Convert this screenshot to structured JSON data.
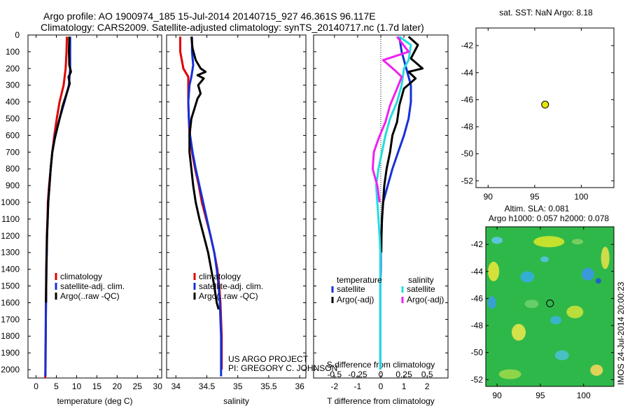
{
  "header": {
    "line1": "Argo profile: AO 1900974_185 15-Jul-2014 20140715_927 46.361S 96.117E",
    "line2": "Climatology: CARS2009. Satellite-adjusted climatology: synTS_20140717.nc (1.7d later)"
  },
  "footer": {
    "project": "US ARGO PROJECT",
    "pi": "PI: GREGORY C. JOHNSON",
    "stamp": "IMOS 24-Jul-2014 20:00:23"
  },
  "colors": {
    "climatology": "#e00000",
    "satellite": "#1430d8",
    "argo": "#000000",
    "sal_sat": "#22dde0",
    "sal_argo": "#f020f0",
    "marker": "#e6e600"
  },
  "chart_data": [
    {
      "type": "line",
      "xlabel": "temperature (deg C)",
      "ylabel": "",
      "xlim": [
        -2,
        31
      ],
      "ylim": [
        0,
        2050
      ],
      "y_reversed": true,
      "xticks": [
        0,
        5,
        10,
        15,
        20,
        25,
        30
      ],
      "yticks": [
        0,
        100,
        200,
        300,
        400,
        500,
        600,
        700,
        800,
        900,
        1000,
        1100,
        1200,
        1300,
        1400,
        1500,
        1600,
        1700,
        1800,
        1900,
        2000
      ],
      "legend": [
        "climatology",
        "satellite-adj. clim.",
        "Argo(..raw -QC)"
      ],
      "series": [
        {
          "name": "climatology",
          "color": "#e00000",
          "x": [
            7.6,
            7.5,
            7.3,
            6.8,
            5.8,
            5.1,
            4.5,
            4.0,
            3.6,
            3.2,
            2.9,
            2.8,
            2.65,
            2.6,
            2.5,
            2.45,
            2.4,
            2.38,
            2.35,
            2.3,
            2.28,
            2.25
          ],
          "y": [
            10,
            100,
            200,
            300,
            400,
            500,
            600,
            700,
            800,
            900,
            1000,
            1100,
            1200,
            1300,
            1400,
            1500,
            1600,
            1700,
            1800,
            1900,
            2000,
            2050
          ]
        },
        {
          "name": "satellite-adj. clim.",
          "color": "#1430d8",
          "x": [
            8.4,
            8.4,
            8.4,
            8.1,
            7.0,
            5.8,
            4.7,
            4.0,
            3.6,
            3.3,
            3.0,
            2.85,
            2.7,
            2.65,
            2.55,
            2.5,
            2.45,
            2.4,
            2.38,
            2.35,
            2.3
          ],
          "y": [
            10,
            100,
            200,
            300,
            400,
            500,
            600,
            700,
            800,
            900,
            1000,
            1100,
            1200,
            1300,
            1400,
            1500,
            1600,
            1700,
            1800,
            1900,
            2040
          ]
        },
        {
          "name": "Argo(..raw -QC)",
          "color": "#000000",
          "x": [
            8.2,
            8.1,
            8.2,
            8.6,
            8.0,
            8.3,
            7.8,
            6.6,
            5.6,
            4.6,
            4.0,
            3.6,
            3.3,
            3.0,
            2.85,
            2.7,
            2.6,
            2.55,
            2.5,
            2.45
          ],
          "y": [
            10,
            100,
            180,
            220,
            250,
            290,
            330,
            420,
            520,
            620,
            700,
            800,
            900,
            1000,
            1100,
            1200,
            1300,
            1400,
            1500,
            1600
          ]
        }
      ]
    },
    {
      "type": "line",
      "xlabel": "salinity",
      "ylabel": "",
      "xlim": [
        33.85,
        36.1
      ],
      "ylim": [
        0,
        2050
      ],
      "y_reversed": true,
      "xticks": [
        34,
        34.5,
        35,
        35.5,
        36
      ],
      "legend": [
        "climatology",
        "satellite-adj. clim.",
        "Argo(..raw -QC)"
      ],
      "series": [
        {
          "name": "climatology",
          "color": "#e00000",
          "x": [
            34.07,
            34.07,
            34.12,
            34.2,
            34.2,
            34.2,
            34.21,
            34.22,
            34.26,
            34.31,
            34.37,
            34.42,
            34.49,
            34.56,
            34.62,
            34.67,
            34.7,
            34.72,
            34.73,
            34.74,
            34.74
          ],
          "y": [
            10,
            100,
            200,
            250,
            300,
            400,
            500,
            600,
            700,
            800,
            900,
            1000,
            1100,
            1200,
            1300,
            1400,
            1500,
            1600,
            1700,
            1800,
            2000
          ]
        },
        {
          "name": "satellite-adj. clim.",
          "color": "#1430d8",
          "x": [
            34.26,
            34.26,
            34.28,
            34.25,
            34.22,
            34.2,
            34.21,
            34.23,
            34.27,
            34.32,
            34.38,
            34.44,
            34.5,
            34.56,
            34.62,
            34.66,
            34.69,
            34.71,
            34.72,
            34.73,
            34.73
          ],
          "y": [
            10,
            100,
            180,
            250,
            300,
            400,
            500,
            600,
            700,
            800,
            900,
            1000,
            1100,
            1200,
            1300,
            1400,
            1500,
            1600,
            1700,
            1800,
            2040
          ]
        },
        {
          "name": "Argo(..raw -QC)",
          "color": "#000000",
          "x": [
            34.25,
            34.27,
            34.32,
            34.4,
            34.48,
            34.35,
            34.45,
            34.36,
            34.4,
            34.35,
            34.25,
            34.22,
            34.22,
            34.25,
            34.28,
            34.32,
            34.38,
            34.45,
            34.52,
            34.57,
            34.62,
            34.66,
            34.69
          ],
          "y": [
            10,
            80,
            150,
            200,
            220,
            240,
            260,
            300,
            350,
            380,
            500,
            600,
            700,
            800,
            900,
            1000,
            1100,
            1200,
            1300,
            1400,
            1500,
            1600,
            1640
          ]
        }
      ]
    },
    {
      "type": "line",
      "xlabel": "T difference from climatology",
      "top_label": "S difference from climatology",
      "xlim": [
        -2.9,
        2.9
      ],
      "ylim": [
        0,
        2050
      ],
      "y_reversed": true,
      "xticks": [
        -2,
        -1,
        0,
        1,
        2
      ],
      "secondary_xticks": [
        "-0.5",
        "-0.25",
        "0",
        "0.25",
        "0.5"
      ],
      "legend_groups": {
        "temperature": [
          "satellite",
          "Argo(-adj)"
        ],
        "salinity": [
          "satellite",
          "Argo(-adj)"
        ]
      },
      "series": [
        {
          "name": "temperature satellite",
          "color": "#1430d8",
          "x": [
            0.8,
            0.9,
            1.1,
            1.3,
            1.3,
            1.2,
            1.0,
            0.75,
            0.5,
            0.3,
            0.1,
            0.05,
            0.02,
            0.0,
            0.0,
            -0.02,
            -0.02,
            -0.02,
            -0.02,
            -0.02
          ],
          "y": [
            10,
            100,
            200,
            300,
            400,
            500,
            600,
            700,
            800,
            900,
            1000,
            1100,
            1200,
            1300,
            1400,
            1500,
            1600,
            1700,
            1800,
            2000
          ]
        },
        {
          "name": "temperature Argo(-adj)",
          "color": "#000000",
          "x": [
            1.2,
            1.6,
            1.3,
            1.8,
            1.2,
            1.5,
            1.0,
            0.8,
            0.7,
            0.5,
            0.4,
            0.25,
            0.15,
            0.1,
            0.05,
            0.03,
            0.02
          ],
          "y": [
            10,
            60,
            140,
            200,
            220,
            260,
            320,
            420,
            520,
            600,
            700,
            800,
            900,
            1000,
            1100,
            1200,
            1300
          ]
        },
        {
          "name": "salinity satellite",
          "color": "#22dde0",
          "x": [
            0.8,
            1.3,
            1.2,
            1.0,
            0.9,
            0.7,
            0.4,
            0.2,
            0.05,
            -0.1,
            -0.2,
            -0.15,
            -0.1,
            -0.05,
            -0.02,
            -0.02,
            -0.02,
            -0.02,
            -0.02,
            -0.02,
            -0.02
          ],
          "y": [
            10,
            60,
            150,
            200,
            300,
            400,
            500,
            600,
            700,
            800,
            900,
            1000,
            1100,
            1200,
            1300,
            1400,
            1500,
            1600,
            1700,
            1800,
            2000
          ]
        },
        {
          "name": "salinity Argo(-adj)",
          "color": "#f020f0",
          "x": [
            0.7,
            1.2,
            0.1,
            0.6,
            0.9,
            0.7,
            0.4,
            0.2,
            -0.1,
            -0.3,
            -0.35,
            -0.15,
            -0.05
          ],
          "y": [
            10,
            100,
            150,
            210,
            250,
            320,
            420,
            520,
            620,
            700,
            800,
            900,
            1000
          ]
        }
      ]
    },
    {
      "type": "scatter",
      "title": "sat. SST: NaN Argo: 8.18",
      "xlim": [
        88.7,
        103.5
      ],
      "ylim": [
        -52.5,
        -40.7
      ],
      "xticks": [
        90,
        95,
        100
      ],
      "yticks": [
        -42,
        -44,
        -46,
        -48,
        -50,
        -52
      ],
      "points": [
        {
          "x": 96.117,
          "y": -46.361
        }
      ]
    },
    {
      "type": "heatmap",
      "title_line1": "Altim. SLA: 0.081",
      "title_line2": "Argo h1000: 0.057 h2000: 0.078",
      "xlim": [
        88.7,
        103.5
      ],
      "ylim": [
        -52.5,
        -40.7
      ],
      "xticks": [
        90,
        95,
        100
      ],
      "yticks": [
        -42,
        -44,
        -46,
        -48,
        -50,
        -52
      ],
      "points": [
        {
          "x": 96.117,
          "y": -46.361
        }
      ]
    }
  ]
}
